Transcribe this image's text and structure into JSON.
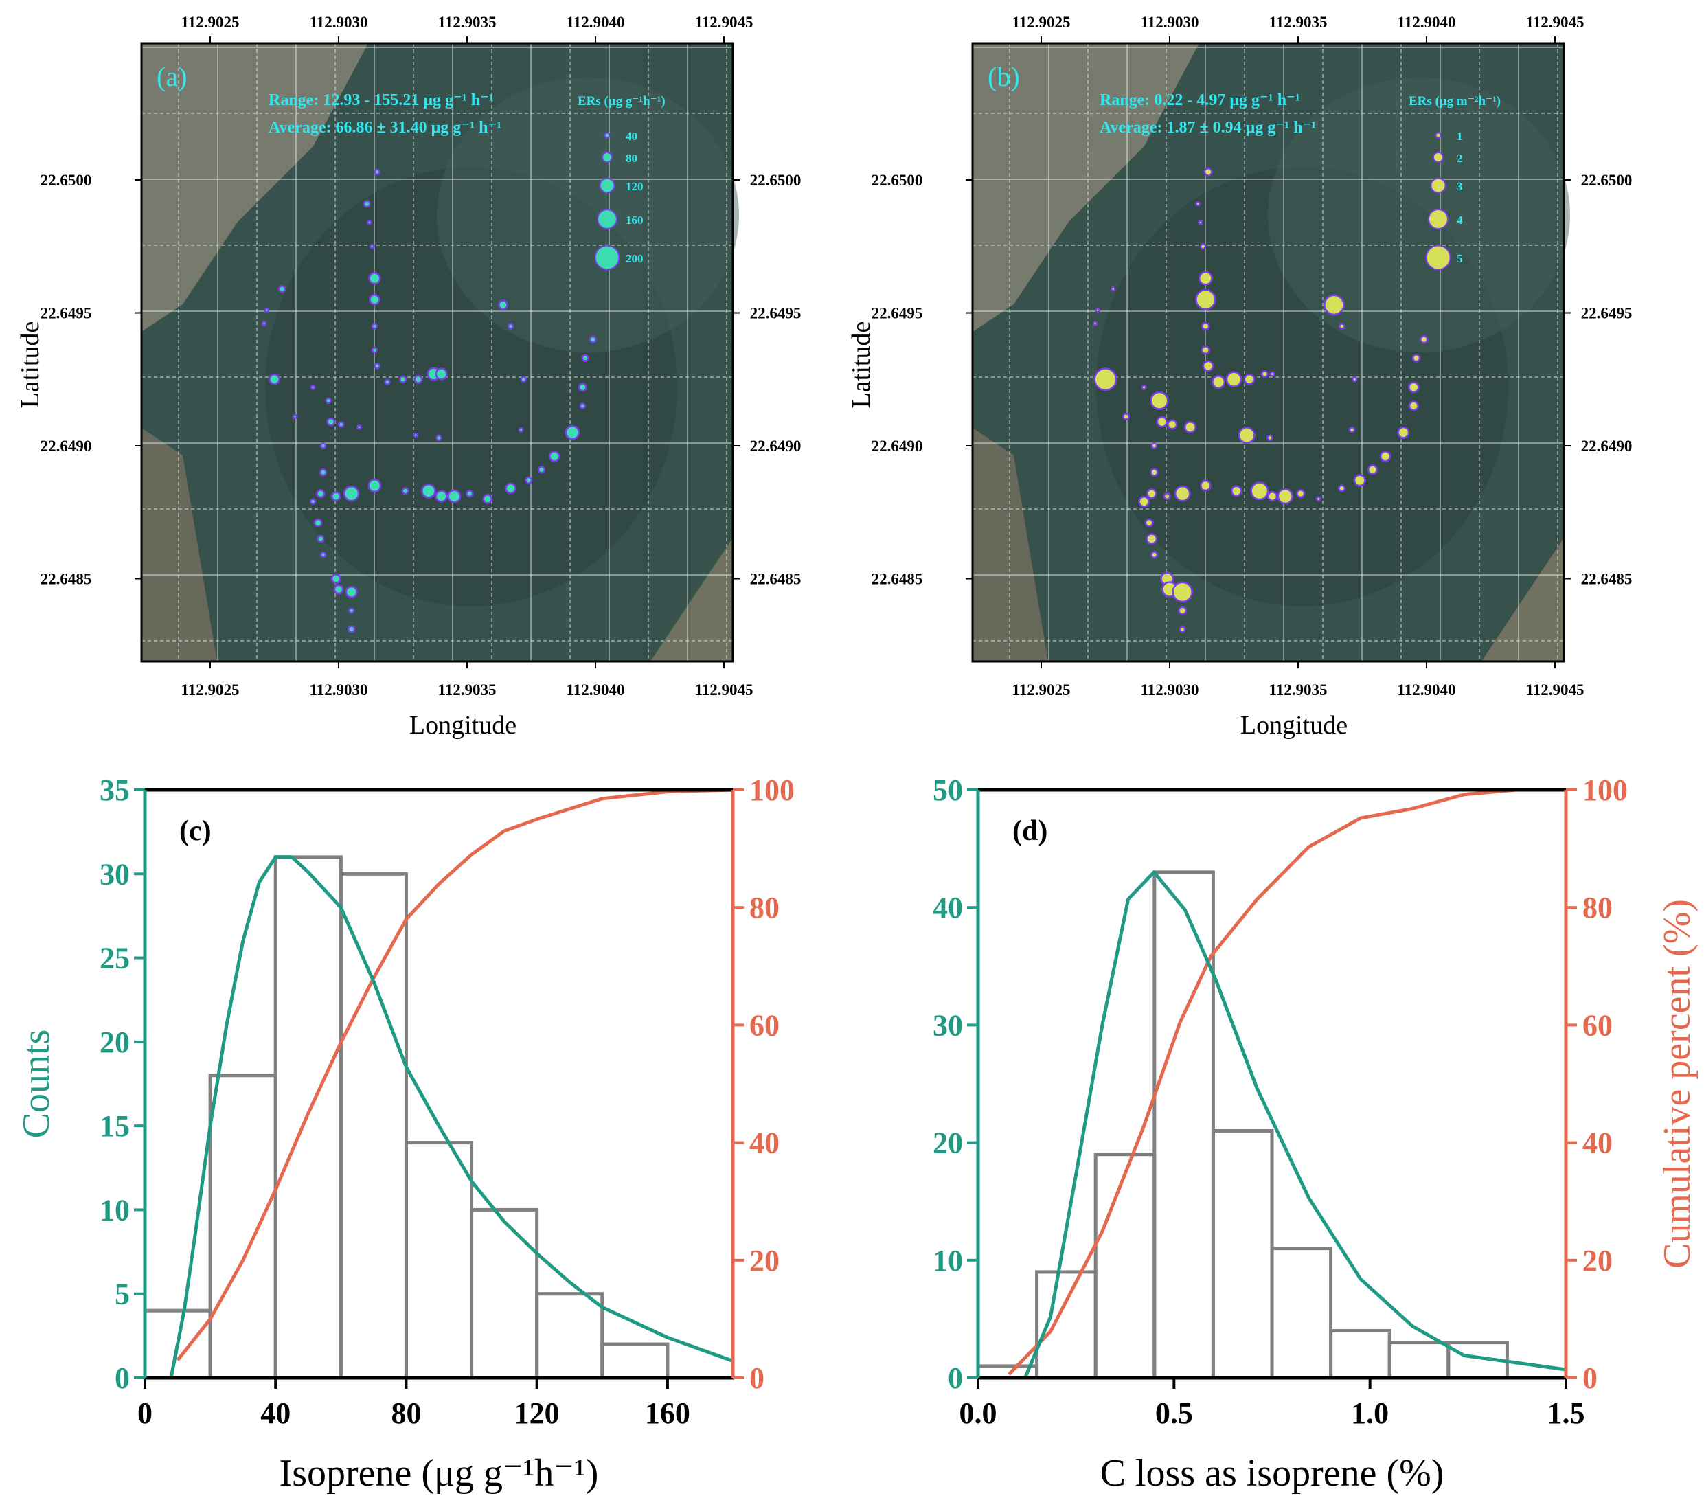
{
  "maps": [
    {
      "label": "(a)",
      "range_text": "Range: 12.93 - 155.21 μg g⁻¹ h⁻¹",
      "average_text": "Average: 66.86 ± 31.40 μg g⁻¹ h⁻¹",
      "legend_title": "ERs (μg g⁻¹h⁻¹)",
      "legend_values": [
        40,
        80,
        120,
        160,
        200
      ],
      "legend_labels": [
        "40",
        "80",
        "120",
        "160",
        "200"
      ],
      "value_index": 2,
      "fill": "#3ddbb0",
      "stroke": "#7b3cf0"
    },
    {
      "label": "(b)",
      "range_text": "Range: 0.22 - 4.97 μg g⁻¹ h⁻¹",
      "average_text": "Average: 1.87 ± 0.94 μg g⁻¹ h⁻¹",
      "legend_title": "ERs (μg m⁻²h⁻¹)",
      "legend_values": [
        1,
        2,
        3,
        4,
        5
      ],
      "legend_labels": [
        "1",
        "2",
        "3",
        "4",
        "5"
      ],
      "value_index": 3,
      "fill": "#d6e05a",
      "stroke": "#7b3cf0"
    }
  ],
  "map_axes": {
    "xlabel": "Longitude",
    "ylabel": "Latitude",
    "lon_ticks": [
      "112.9025",
      "112.9030",
      "112.9035",
      "112.9040",
      "112.9045"
    ],
    "lat_ticks": [
      "22.6500",
      "22.6495",
      "22.6490",
      "22.6485"
    ],
    "lon_range": [
      112.90221,
      112.90459
    ],
    "lat_range": [
      22.64813,
      22.6505
    ]
  },
  "points": [
    [
      112.90315,
      22.65003,
      40,
      1.5
    ],
    [
      112.90311,
      22.64991,
      50,
      0.6
    ],
    [
      112.90312,
      22.64984,
      30,
      0.5
    ],
    [
      112.90313,
      22.64975,
      30,
      1.0
    ],
    [
      112.90314,
      22.64963,
      90,
      2.6
    ],
    [
      112.90314,
      22.64955,
      80,
      4.0
    ],
    [
      112.90314,
      22.64945,
      40,
      1.4
    ],
    [
      112.90314,
      22.64936,
      40,
      1.5
    ],
    [
      112.90315,
      22.6493,
      40,
      2.0
    ],
    [
      112.90319,
      22.64924,
      40,
      2.5
    ],
    [
      112.90325,
      22.64925,
      50,
      3.0
    ],
    [
      112.90331,
      22.64925,
      60,
      2.0
    ],
    [
      112.90337,
      22.64927,
      100,
      1.2
    ],
    [
      112.9034,
      22.64927,
      90,
      0.8
    ],
    [
      112.90339,
      22.64903,
      40,
      1.0
    ],
    [
      112.9033,
      22.64904,
      30,
      3.2
    ],
    [
      112.90278,
      22.64959,
      50,
      0.5
    ],
    [
      112.90272,
      22.64951,
      30,
      0.4
    ],
    [
      112.90271,
      22.64946,
      30,
      0.4
    ],
    [
      112.90275,
      22.64925,
      80,
      4.5
    ],
    [
      112.9029,
      22.64922,
      30,
      0.8
    ],
    [
      112.90296,
      22.64917,
      40,
      3.5
    ],
    [
      112.90297,
      22.64909,
      60,
      2.0
    ],
    [
      112.90301,
      22.64908,
      40,
      1.8
    ],
    [
      112.90294,
      22.649,
      40,
      1.0
    ],
    [
      112.90294,
      22.6489,
      50,
      1.4
    ],
    [
      112.9029,
      22.64879,
      40,
      2.0
    ],
    [
      112.90292,
      22.64871,
      60,
      1.5
    ],
    [
      112.90293,
      22.64865,
      50,
      2.0
    ],
    [
      112.90294,
      22.64859,
      40,
      1.2
    ],
    [
      112.90299,
      22.6485,
      70,
      2.5
    ],
    [
      112.903,
      22.64846,
      70,
      3.0
    ],
    [
      112.90305,
      22.64845,
      90,
      4.0
    ],
    [
      112.90305,
      22.64838,
      40,
      1.5
    ],
    [
      112.90305,
      22.64831,
      50,
      1.0
    ],
    [
      112.90293,
      22.64882,
      60,
      1.8
    ],
    [
      112.90299,
      22.64881,
      70,
      1.2
    ],
    [
      112.90305,
      22.64882,
      120,
      3.0
    ],
    [
      112.90314,
      22.64885,
      100,
      2.0
    ],
    [
      112.90326,
      22.64883,
      50,
      2.0
    ],
    [
      112.90335,
      22.64883,
      110,
      3.5
    ],
    [
      112.9034,
      22.64881,
      90,
      1.8
    ],
    [
      112.90345,
      22.64881,
      100,
      3.0
    ],
    [
      112.90351,
      22.64882,
      50,
      1.5
    ],
    [
      112.90358,
      22.6488,
      70,
      0.8
    ],
    [
      112.90367,
      22.64884,
      80,
      1.2
    ],
    [
      112.90374,
      22.64887,
      50,
      2.2
    ],
    [
      112.90379,
      22.64891,
      50,
      1.8
    ],
    [
      112.90384,
      22.64896,
      80,
      2.0
    ],
    [
      112.90391,
      22.64905,
      110,
      2.2
    ],
    [
      112.90395,
      22.64915,
      40,
      1.8
    ],
    [
      112.90395,
      22.64922,
      60,
      2.0
    ],
    [
      112.90396,
      22.64933,
      50,
      1.4
    ],
    [
      112.90399,
      22.6494,
      50,
      1.4
    ],
    [
      112.90364,
      22.64953,
      70,
      4.0
    ],
    [
      112.90367,
      22.64945,
      40,
      1.0
    ],
    [
      112.90372,
      22.64925,
      40,
      0.8
    ],
    [
      112.90371,
      22.64906,
      30,
      1.0
    ],
    [
      112.90283,
      22.64911,
      30,
      1.2
    ],
    [
      112.90308,
      22.64907,
      30,
      2.2
    ]
  ],
  "chart_data": [
    {
      "type": "bar",
      "panel": "(c)",
      "xlabel": "Isoprene (μg g⁻¹h⁻¹)",
      "ylabel": "Counts",
      "y2label": "",
      "xlim": [
        0,
        180
      ],
      "ylim": [
        0,
        35
      ],
      "y2lim": [
        0,
        100
      ],
      "xticks": [
        0,
        40,
        80,
        120,
        160
      ],
      "xtick_labels": [
        "0",
        "40",
        "80",
        "120",
        "160"
      ],
      "yticks": [
        0,
        5,
        10,
        15,
        20,
        25,
        30,
        35
      ],
      "ytick_labels": [
        "0",
        "5",
        "10",
        "15",
        "20",
        "25",
        "30",
        "35"
      ],
      "y2ticks": [
        0,
        20,
        40,
        60,
        80,
        100
      ],
      "y2tick_labels": [
        "0",
        "20",
        "40",
        "60",
        "80",
        "100"
      ],
      "bin_edges": [
        0,
        20,
        40,
        60,
        80,
        100,
        120,
        140,
        160
      ],
      "counts": [
        4,
        18,
        31,
        30,
        14,
        10,
        5,
        2
      ],
      "fit_curve": [
        [
          8,
          0
        ],
        [
          12,
          4
        ],
        [
          15,
          8
        ],
        [
          20,
          15
        ],
        [
          25,
          21
        ],
        [
          30,
          26
        ],
        [
          35,
          29.5
        ],
        [
          40,
          31
        ],
        [
          45,
          31
        ],
        [
          50,
          30.1
        ],
        [
          60,
          28
        ],
        [
          70,
          23.6
        ],
        [
          80,
          18.5
        ],
        [
          90,
          15
        ],
        [
          100,
          11.7
        ],
        [
          110,
          9.3
        ],
        [
          120,
          7.4
        ],
        [
          130,
          5.7
        ],
        [
          140,
          4.2
        ],
        [
          160,
          2.4
        ],
        [
          180,
          1
        ]
      ],
      "cumulative_curve": [
        [
          10,
          3
        ],
        [
          20,
          10
        ],
        [
          30,
          20
        ],
        [
          40,
          32
        ],
        [
          50,
          45
        ],
        [
          60,
          57
        ],
        [
          70,
          68
        ],
        [
          80,
          78
        ],
        [
          90,
          84
        ],
        [
          100,
          89
        ],
        [
          110,
          93
        ],
        [
          120,
          95
        ],
        [
          140,
          98.5
        ],
        [
          160,
          99.7
        ],
        [
          180,
          100
        ]
      ]
    },
    {
      "type": "bar",
      "panel": "(d)",
      "xlabel": "C loss as isoprene (%)",
      "ylabel": "",
      "y2label": "Cumulative percent (%)",
      "xlim": [
        0,
        1.5
      ],
      "ylim": [
        0,
        50
      ],
      "y2lim": [
        0,
        100
      ],
      "xticks": [
        0,
        0.5,
        1.0,
        1.5
      ],
      "xtick_labels": [
        "0.0",
        "0.5",
        "1.0",
        "1.5"
      ],
      "yticks": [
        0,
        10,
        20,
        30,
        40,
        50
      ],
      "ytick_labels": [
        "0",
        "10",
        "20",
        "30",
        "40",
        "50"
      ],
      "y2ticks": [
        0,
        20,
        40,
        60,
        80,
        100
      ],
      "y2tick_labels": [
        "0",
        "20",
        "40",
        "60",
        "80",
        "100"
      ],
      "bin_edges": [
        0,
        0.15,
        0.3,
        0.45,
        0.6,
        0.75,
        0.9,
        1.05,
        1.2,
        1.35
      ],
      "counts": [
        1,
        9,
        19,
        43,
        21,
        11,
        4,
        3,
        3
      ],
      "fit_curve": [
        [
          0.12,
          0
        ],
        [
          0.185,
          5.2
        ],
        [
          0.25,
          17.3
        ],
        [
          0.317,
          30
        ],
        [
          0.383,
          40.7
        ],
        [
          0.449,
          43
        ],
        [
          0.528,
          39.8
        ],
        [
          0.607,
          33.8
        ],
        [
          0.712,
          24.6
        ],
        [
          0.844,
          15.3
        ],
        [
          0.976,
          8.4
        ],
        [
          1.108,
          4.4
        ],
        [
          1.24,
          1.9
        ],
        [
          1.5,
          0.7
        ]
      ],
      "cumulative_curve": [
        [
          0.079,
          0.6
        ],
        [
          0.185,
          7.9
        ],
        [
          0.317,
          24.9
        ],
        [
          0.422,
          42.6
        ],
        [
          0.515,
          60.4
        ],
        [
          0.594,
          71.7
        ],
        [
          0.712,
          81.4
        ],
        [
          0.844,
          90.3
        ],
        [
          0.976,
          95.2
        ],
        [
          1.108,
          96.8
        ],
        [
          1.24,
          99.2
        ],
        [
          1.372,
          100
        ],
        [
          1.5,
          100
        ]
      ]
    }
  ],
  "colors": {
    "counts": "#1f9a84",
    "cumulative": "#e5694f",
    "bars": "#808080",
    "label_cyan": "#33e6f0"
  }
}
